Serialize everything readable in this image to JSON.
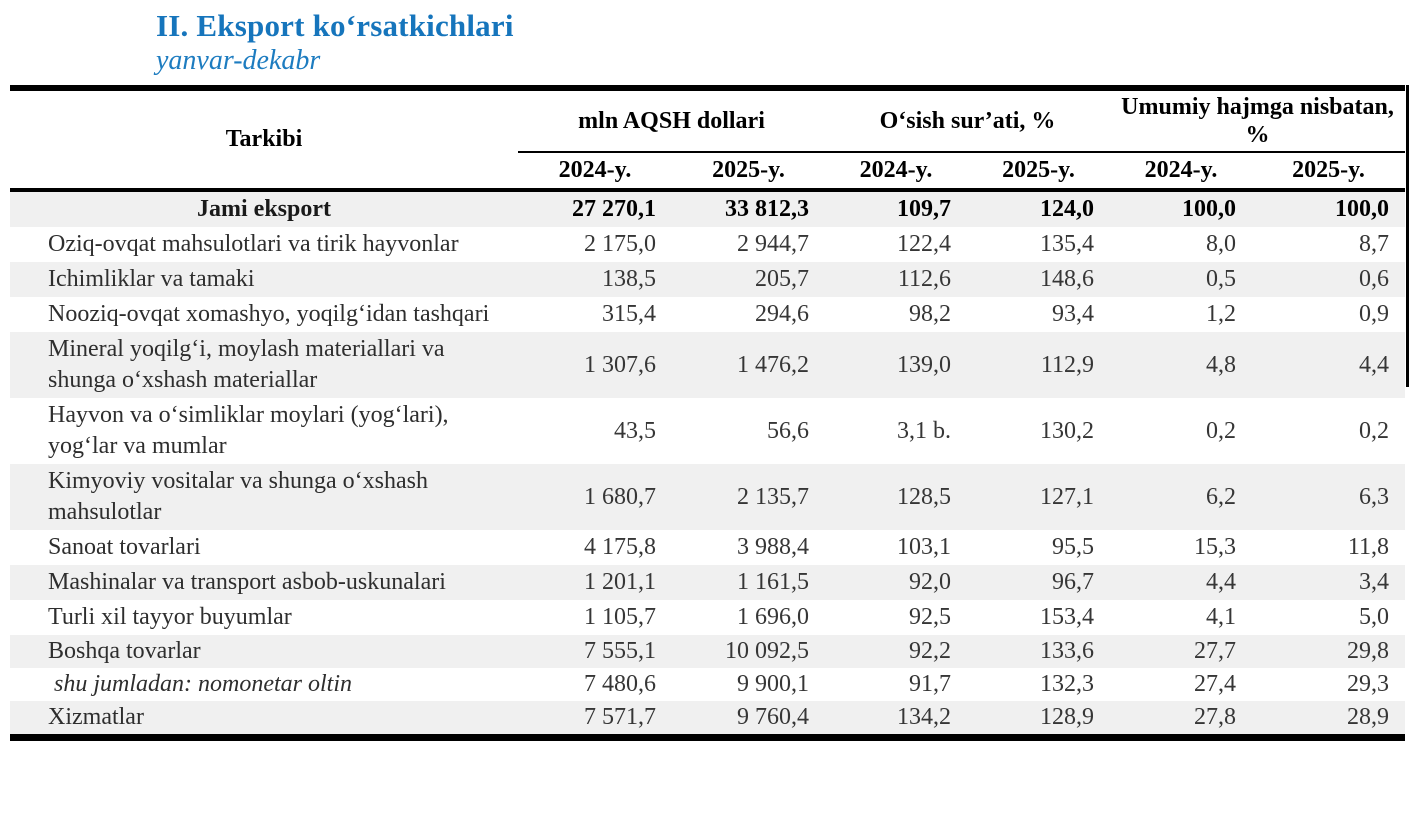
{
  "page": {
    "title": "II. Eksport ko‘rsatkichlari",
    "subtitle": "yanvar-dekabr"
  },
  "colors": {
    "title_blue": "#1675bc",
    "row_shade": "#f0f0f0",
    "rule_black": "#000000"
  },
  "table": {
    "group_headers": {
      "tarkibi": "Tarkibi",
      "mln_usd": "mln AQSH dollari",
      "growth": "O‘sish sur’ati, %",
      "share": "Umumiy hajmga nisbatan, %"
    },
    "year_headers": [
      "2024-y.",
      "2025-y.",
      "2024-y.",
      "2025-y.",
      "2024-y.",
      "2025-y."
    ],
    "rows": [
      {
        "label": "Jami eksport",
        "values": [
          "27 270,1",
          "33 812,3",
          "109,7",
          "124,0",
          "100,0",
          "100,0"
        ]
      },
      {
        "label": "Oziq-ovqat mahsulotlari va tirik hayvonlar",
        "values": [
          "2 175,0",
          "2 944,7",
          "122,4",
          "135,4",
          "8,0",
          "8,7"
        ]
      },
      {
        "label": "Ichimliklar va tamaki",
        "values": [
          "138,5",
          "205,7",
          "112,6",
          "148,6",
          "0,5",
          "0,6"
        ]
      },
      {
        "label": "Nooziq-ovqat xomashyo, yoqilg‘idan tashqari",
        "values": [
          "315,4",
          "294,6",
          "98,2",
          "93,4",
          "1,2",
          "0,9"
        ]
      },
      {
        "label": "Mineral yoqilg‘i, moylash materiallari va shunga o‘xshash materiallar",
        "values": [
          "1 307,6",
          "1 476,2",
          "139,0",
          "112,9",
          "4,8",
          "4,4"
        ]
      },
      {
        "label": "Hayvon va o‘simliklar moylari (yog‘lari), yog‘lar va mumlar",
        "values": [
          "43,5",
          "56,6",
          "3,1 b.",
          "130,2",
          "0,2",
          "0,2"
        ]
      },
      {
        "label": "Kimyoviy vositalar va shunga o‘xshash mahsulotlar",
        "values": [
          "1 680,7",
          "2 135,7",
          "128,5",
          "127,1",
          "6,2",
          "6,3"
        ]
      },
      {
        "label": "Sanoat tovarlari",
        "values": [
          "4 175,8",
          "3 988,4",
          "103,1",
          "95,5",
          "15,3",
          "11,8"
        ]
      },
      {
        "label": "Mashinalar va transport asbob-uskunalari",
        "values": [
          "1 201,1",
          "1 161,5",
          "92,0",
          "96,7",
          "4,4",
          "3,4"
        ]
      },
      {
        "label": "Turli xil tayyor buyumlar",
        "values": [
          "1 105,7",
          "1 696,0",
          "92,5",
          "153,4",
          "4,1",
          "5,0"
        ]
      },
      {
        "label": "Boshqa tovarlar",
        "values": [
          "7 555,1",
          "10 092,5",
          "92,2",
          "133,6",
          "27,7",
          "29,8"
        ]
      },
      {
        "label": "shu jumladan: nomonetar oltin",
        "values": [
          "7 480,6",
          "9 900,1",
          "91,7",
          "132,3",
          "27,4",
          "29,3"
        ]
      },
      {
        "label": "Xizmatlar",
        "values": [
          "7 571,7",
          "9 760,4",
          "134,2",
          "128,9",
          "27,8",
          "28,9"
        ]
      }
    ]
  }
}
